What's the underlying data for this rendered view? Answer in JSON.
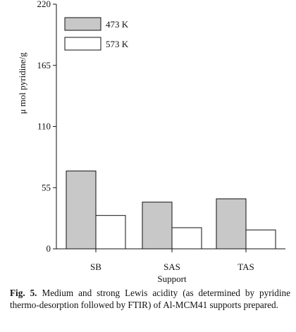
{
  "chart_data": {
    "type": "bar",
    "title": "",
    "xlabel": "Support",
    "ylabel": "μ mol pyridine/g",
    "categories": [
      "SB",
      "SAS",
      "TAS"
    ],
    "ylim": [
      0,
      220
    ],
    "yticks": [
      0,
      55,
      110,
      165,
      220
    ],
    "grid": false,
    "legend_position": "top-left",
    "series": [
      {
        "name": "473 K",
        "values": [
          70,
          42,
          45
        ],
        "color": "#c8c8c8"
      },
      {
        "name": "573 K",
        "values": [
          30,
          19,
          17
        ],
        "color": "#ffffff"
      }
    ]
  },
  "caption": {
    "label": "Fig. 5.",
    "text": "Medium and strong Lewis acidity (as determined by pyridine thermo-desorption followed by FTIR) of Al-MCM41 supports prepared."
  }
}
